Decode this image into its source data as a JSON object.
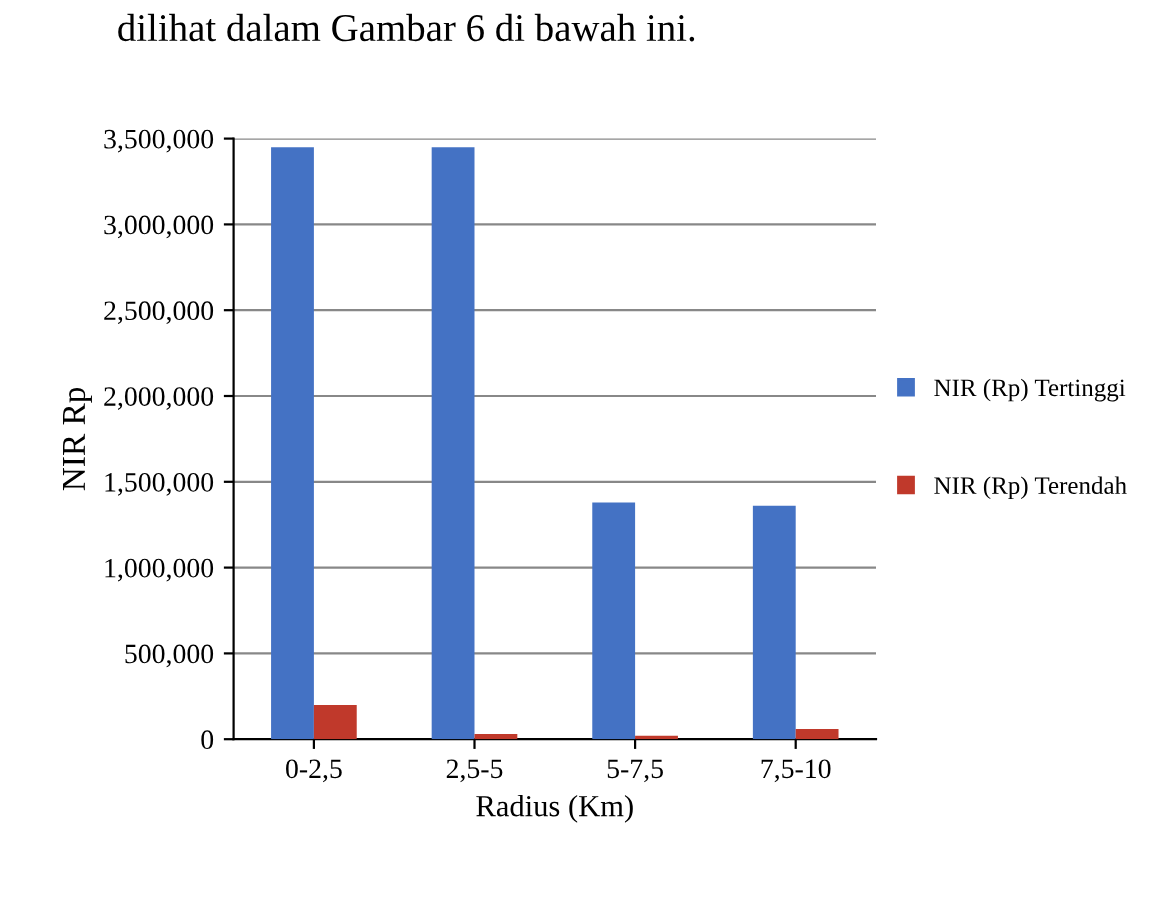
{
  "chart_data": {
    "type": "bar",
    "xlabel": "Radius (Km)",
    "ylabel": "NIR Rp",
    "annotations": [
      "dilihat dalam Gambar 6 di bawah ini."
    ],
    "categories": [
      "0-2,5",
      "2,5-5",
      "5-7,5",
      "7,5-10"
    ],
    "series": [
      {
        "name": "NIR (Rp) Tertinggi",
        "color": "#4472c4",
        "values": [
          3450000,
          3450000,
          1380000,
          1360000
        ]
      },
      {
        "name": "NIR (Rp) Terendah",
        "color": "#c0392b",
        "values": [
          200000,
          30000,
          20000,
          60000
        ]
      }
    ],
    "ylim": [
      0,
      3500000
    ],
    "yticks": [
      {
        "value": 0,
        "label": "0"
      },
      {
        "value": 500000,
        "label": "500,000"
      },
      {
        "value": 1000000,
        "label": "1,000,000"
      },
      {
        "value": 1500000,
        "label": "1,500,000"
      },
      {
        "value": 2000000,
        "label": "2,000,000"
      },
      {
        "value": 2500000,
        "label": "2,500,000"
      },
      {
        "value": 3000000,
        "label": "3,000,000"
      },
      {
        "value": 3500000,
        "label": "3,500,000"
      }
    ],
    "grid": "y",
    "legend": "right"
  }
}
